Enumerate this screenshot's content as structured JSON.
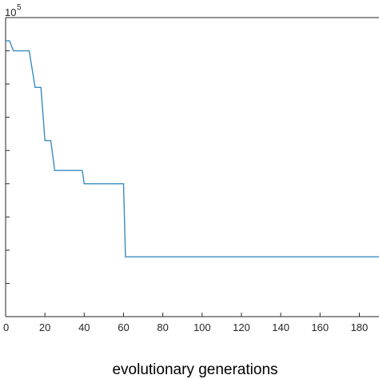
{
  "chart_data": {
    "type": "line",
    "title": "",
    "xlabel": "evolutionary generations",
    "ylabel": "",
    "y_exponent": {
      "base": "10",
      "power": "5"
    },
    "xlim": [
      0,
      190
    ],
    "ylim": [
      0,
      9
    ],
    "xticks": [
      0,
      20,
      40,
      60,
      80,
      100,
      120,
      140,
      160,
      180
    ],
    "yticks": [
      1,
      2,
      3,
      4,
      5,
      6,
      7,
      8
    ],
    "grid": false,
    "legend": "none",
    "line_color": "#3a8cc2",
    "series": [
      {
        "x": [
          0,
          2,
          4,
          10,
          12,
          15,
          18,
          20,
          23,
          25,
          30,
          35,
          39,
          40,
          43,
          50,
          60,
          61,
          62,
          70,
          100,
          150,
          190
        ],
        "y": [
          8.3,
          8.3,
          8.0,
          8.0,
          8.0,
          6.9,
          6.9,
          5.3,
          5.3,
          4.4,
          4.4,
          4.4,
          4.4,
          4.0,
          4.0,
          4.0,
          4.0,
          1.8,
          1.8,
          1.8,
          1.8,
          1.8,
          1.8
        ]
      }
    ]
  }
}
